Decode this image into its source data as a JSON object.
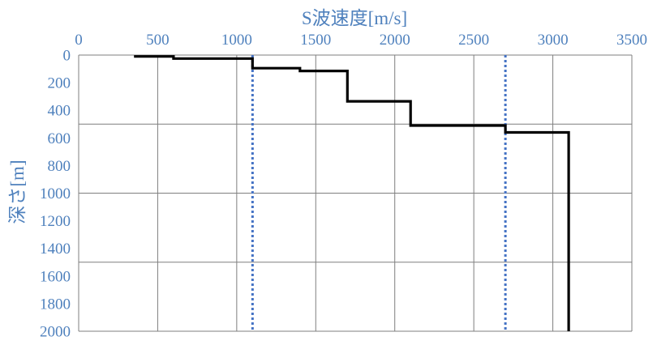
{
  "chart_data": {
    "type": "line",
    "xlabel": "S波速度[m/s]",
    "ylabel": "深さ[m]",
    "xlim": [
      0,
      3500
    ],
    "ylim": [
      0,
      2000
    ],
    "y_inverted": true,
    "x_axis_position": "top",
    "xticks": [
      0,
      500,
      1000,
      1500,
      2000,
      2500,
      3000,
      3500
    ],
    "yticks": [
      0,
      200,
      400,
      600,
      800,
      1000,
      1200,
      1400,
      1600,
      1800,
      2000
    ],
    "grid": "major gridlines at every 500 on both axes",
    "colors": {
      "profile": "#000000",
      "reference": "#4472c4",
      "text": "#4f81bd",
      "grid": "#7f7f7f"
    },
    "profile": {
      "style": "step",
      "points": [
        [
          350,
          10
        ],
        [
          600,
          10
        ],
        [
          600,
          25
        ],
        [
          1100,
          25
        ],
        [
          1100,
          95
        ],
        [
          1400,
          95
        ],
        [
          1400,
          115
        ],
        [
          1700,
          115
        ],
        [
          1700,
          335
        ],
        [
          2100,
          335
        ],
        [
          2100,
          510
        ],
        [
          2700,
          510
        ],
        [
          2700,
          560
        ],
        [
          3100,
          560
        ],
        [
          3100,
          2000
        ]
      ]
    },
    "reference_lines": [
      {
        "x": 1100,
        "style": "dotted"
      },
      {
        "x": 2700,
        "style": "dotted"
      }
    ]
  }
}
